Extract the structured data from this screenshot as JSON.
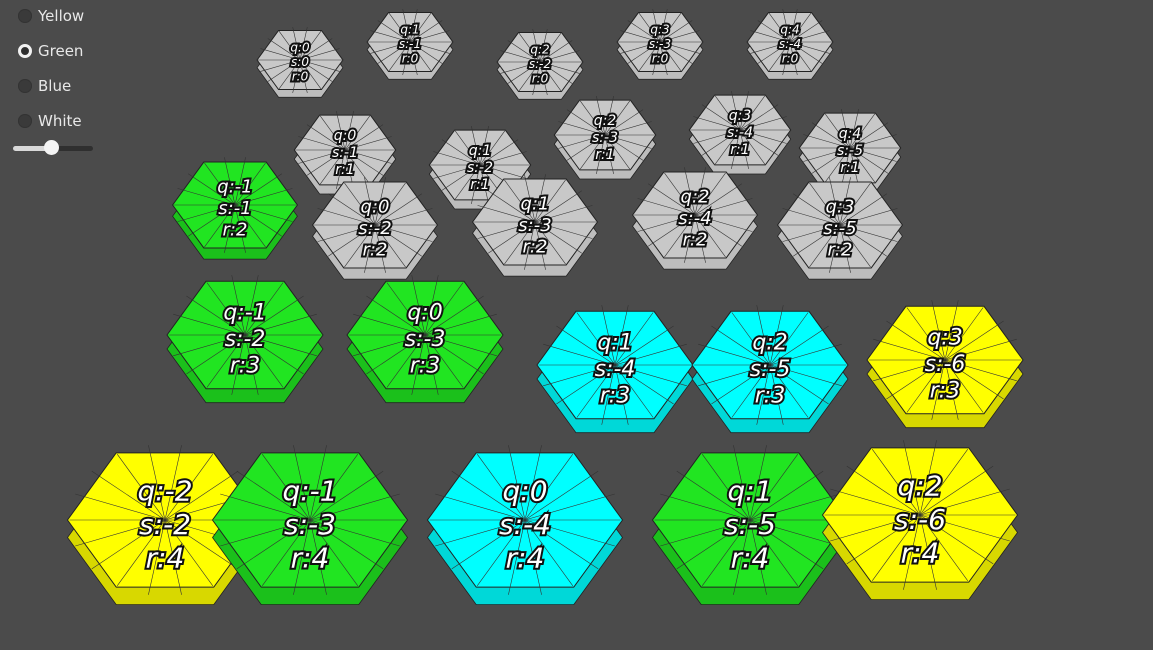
{
  "color_options": [
    {
      "label": "Yellow",
      "checked": false
    },
    {
      "label": "Green",
      "checked": true
    },
    {
      "label": "Blue",
      "checked": false
    },
    {
      "label": "White",
      "checked": false
    }
  ],
  "height_slider": {
    "value": 0.4
  },
  "terrain_colors": {
    "yellow": "#ffff00",
    "green": "#21e521",
    "blue": "#00ffff",
    "white": "#c8c8c8",
    "background": "#4b4b4b"
  },
  "tiles": [
    {
      "q": "q:0",
      "s": "s:0",
      "r": "r:0",
      "color": "white"
    },
    {
      "q": "q:1",
      "s": "s:-1",
      "r": "r:0",
      "color": "white"
    },
    {
      "q": "q:2",
      "s": "s:-2",
      "r": "r:0",
      "color": "white"
    },
    {
      "q": "q:3",
      "s": "s:-3",
      "r": "r:0",
      "color": "white"
    },
    {
      "q": "q:4",
      "s": "s:-4",
      "r": "r:0",
      "color": "white"
    },
    {
      "q": "q:0",
      "s": "s:-1",
      "r": "r:1",
      "color": "white"
    },
    {
      "q": "q:1",
      "s": "s:-2",
      "r": "r:1",
      "color": "white"
    },
    {
      "q": "q:2",
      "s": "s:-3",
      "r": "r:1",
      "color": "white"
    },
    {
      "q": "q:3",
      "s": "s:-4",
      "r": "r:1",
      "color": "white"
    },
    {
      "q": "q:4",
      "s": "s:-5",
      "r": "r:1",
      "color": "white"
    },
    {
      "q": "q:-1",
      "s": "s:-1",
      "r": "r:2",
      "color": "green"
    },
    {
      "q": "q:0",
      "s": "s:-2",
      "r": "r:2",
      "color": "white"
    },
    {
      "q": "q:1",
      "s": "s:-3",
      "r": "r:2",
      "color": "white"
    },
    {
      "q": "q:2",
      "s": "s:-4",
      "r": "r:2",
      "color": "white"
    },
    {
      "q": "q:3",
      "s": "s:-5",
      "r": "r:2",
      "color": "white"
    },
    {
      "q": "q:-1",
      "s": "s:-2",
      "r": "r:3",
      "color": "green"
    },
    {
      "q": "q:0",
      "s": "s:-3",
      "r": "r:3",
      "color": "green"
    },
    {
      "q": "q:1",
      "s": "s:-4",
      "r": "r:3",
      "color": "blue"
    },
    {
      "q": "q:2",
      "s": "s:-5",
      "r": "r:3",
      "color": "blue"
    },
    {
      "q": "q:3",
      "s": "s:-6",
      "r": "r:3",
      "color": "yellow"
    },
    {
      "q": "q:-2",
      "s": "s:-2",
      "r": "r:4",
      "color": "yellow"
    },
    {
      "q": "q:-1",
      "s": "s:-3",
      "r": "r:4",
      "color": "green"
    },
    {
      "q": "q:0",
      "s": "s:-4",
      "r": "r:4",
      "color": "blue"
    },
    {
      "q": "q:1",
      "s": "s:-5",
      "r": "r:4",
      "color": "green"
    },
    {
      "q": "q:2",
      "s": "s:-6",
      "r": "r:4",
      "color": "yellow"
    }
  ]
}
